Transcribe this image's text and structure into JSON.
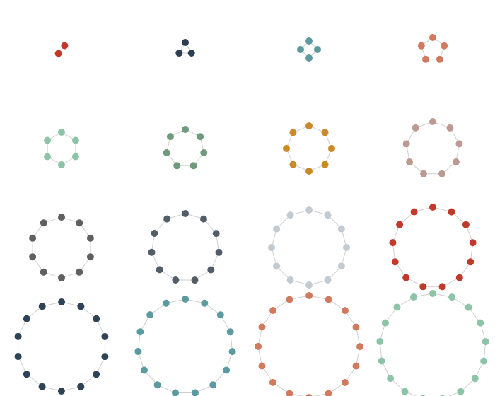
{
  "diagram": {
    "type": "ring-graph-grid",
    "grid_columns": 4,
    "grid_rows": 4,
    "graphs": [
      {
        "node_count": 2,
        "color": "#c0392b"
      },
      {
        "node_count": 3,
        "color": "#2c3e50"
      },
      {
        "node_count": 4,
        "color": "#5b9aa0"
      },
      {
        "node_count": 5,
        "color": "#d17a5e"
      },
      {
        "node_count": 6,
        "color": "#8cc4a8"
      },
      {
        "node_count": 7,
        "color": "#6f9a7b"
      },
      {
        "node_count": 8,
        "color": "#c98a27"
      },
      {
        "node_count": 9,
        "color": "#bc9a91"
      },
      {
        "node_count": 10,
        "color": "#606060"
      },
      {
        "node_count": 11,
        "color": "#525d6a"
      },
      {
        "node_count": 12,
        "color": "#c2cad2"
      },
      {
        "node_count": 13,
        "color": "#c0392b"
      },
      {
        "node_count": 14,
        "color": "#2f4356"
      },
      {
        "node_count": 15,
        "color": "#5b9aa0"
      },
      {
        "node_count": 16,
        "color": "#d17a5e"
      },
      {
        "node_count": 17,
        "color": "#8cc4a8"
      }
    ]
  }
}
